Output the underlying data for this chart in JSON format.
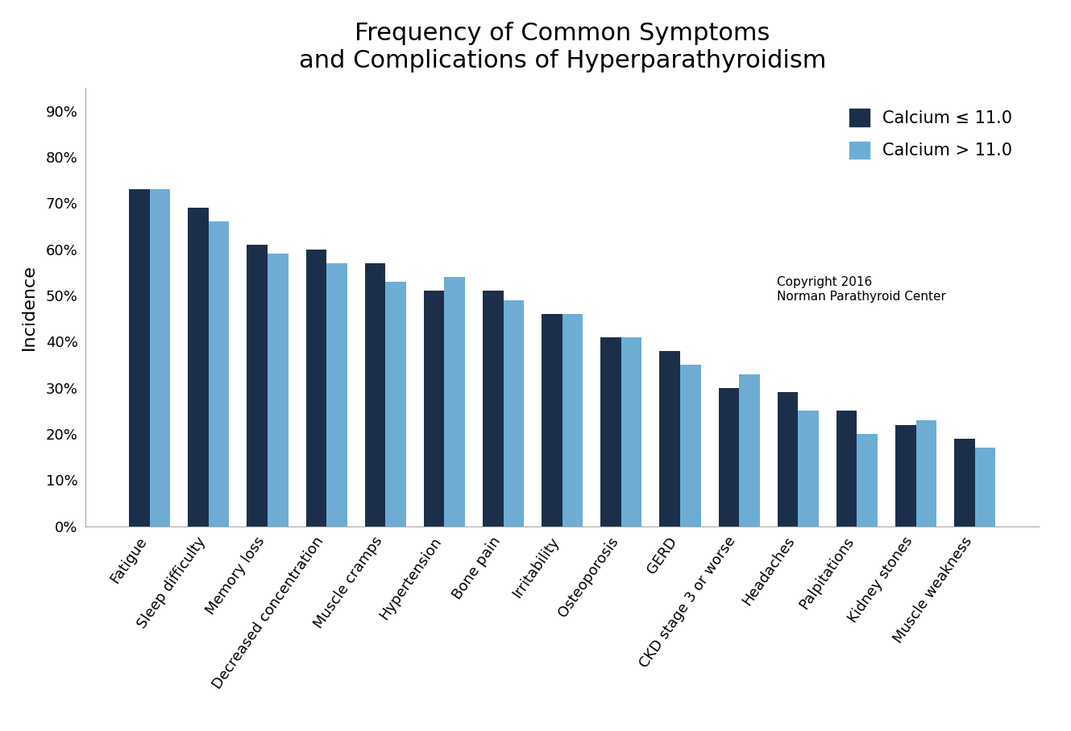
{
  "title": "Frequency of Common Symptoms\nand Complications of Hyperparathyroidism",
  "ylabel": "Incidence",
  "categories": [
    "Fatigue",
    "Sleep difficulty",
    "Memory loss",
    "Decreased concentration",
    "Muscle cramps",
    "Hypertension",
    "Bone pain",
    "Irritability",
    "Osteoporosis",
    "GERD",
    "CKD stage 3 or worse",
    "Headaches",
    "Palpitations",
    "Kidney stones",
    "Muscle weakness"
  ],
  "calcium_low": [
    0.73,
    0.69,
    0.61,
    0.6,
    0.57,
    0.51,
    0.51,
    0.46,
    0.41,
    0.38,
    0.3,
    0.29,
    0.25,
    0.22,
    0.19
  ],
  "calcium_high": [
    0.73,
    0.66,
    0.59,
    0.57,
    0.53,
    0.54,
    0.49,
    0.46,
    0.41,
    0.35,
    0.33,
    0.25,
    0.2,
    0.23,
    0.17
  ],
  "color_low": "#1c2f4a",
  "color_high": "#6dadd4",
  "legend_low": "Calcium ≤ 11.0",
  "legend_high": "Calcium > 11.0",
  "copyright": "Copyright 2016\nNorman Parathyroid Center",
  "yticks": [
    0.0,
    0.1,
    0.2,
    0.3,
    0.4,
    0.5,
    0.6,
    0.7,
    0.8,
    0.9
  ],
  "ytick_labels": [
    "0%",
    "10%",
    "20%",
    "30%",
    "40%",
    "50%",
    "60%",
    "70%",
    "80%",
    "90%"
  ],
  "ylim": [
    0,
    0.95
  ],
  "background_color": "#ffffff",
  "title_fontsize": 22,
  "axis_label_fontsize": 16,
  "tick_fontsize": 13,
  "legend_fontsize": 15,
  "copyright_fontsize": 11
}
